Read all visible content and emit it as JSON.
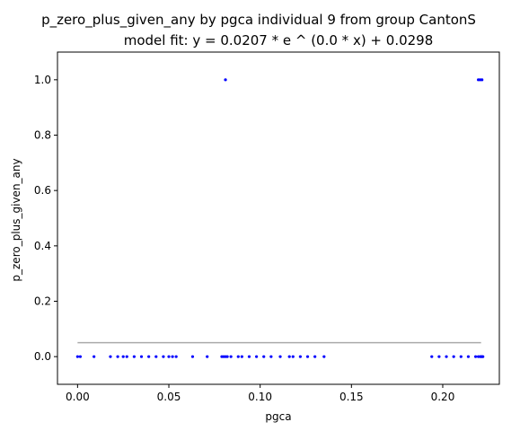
{
  "chart_data": {
    "type": "scatter",
    "title": "p_zero_plus_given_any by pgca individual 9 from group CantonS",
    "subtitle": "model fit: y = 0.0207 * e ^ (0.0 * x) + 0.0298",
    "xlabel": "pgca",
    "ylabel": "p_zero_plus_given_any",
    "xlim": [
      -0.011,
      0.231
    ],
    "ylim": [
      -0.1,
      1.1
    ],
    "x_ticks": [
      0.0,
      0.05,
      0.1,
      0.15,
      0.2
    ],
    "x_tick_labels": [
      "0.00",
      "0.05",
      "0.10",
      "0.15",
      "0.20"
    ],
    "y_ticks": [
      0.0,
      0.2,
      0.4,
      0.6,
      0.8,
      1.0
    ],
    "y_tick_labels": [
      "0.0",
      "0.2",
      "0.4",
      "0.6",
      "0.8",
      "1.0"
    ],
    "grid": false,
    "legend": "none",
    "point_color": "#0000ff",
    "fit_color": "#aaaaaa",
    "series": [
      {
        "x": [
          0.0,
          0.0015,
          0.009,
          0.018,
          0.022,
          0.025,
          0.027,
          0.031,
          0.035,
          0.039,
          0.043,
          0.047,
          0.05,
          0.052,
          0.054,
          0.063,
          0.071,
          0.079,
          0.08,
          0.081,
          0.082,
          0.084,
          0.088,
          0.09,
          0.094,
          0.098,
          0.102,
          0.106,
          0.111,
          0.116,
          0.118,
          0.122,
          0.126,
          0.13,
          0.135,
          0.194,
          0.198,
          0.202,
          0.206,
          0.21,
          0.214,
          0.218,
          0.2195,
          0.2205,
          0.221,
          0.2215,
          0.222,
          0.081,
          0.2195,
          0.2205,
          0.2215
        ],
        "y": [
          0.0,
          0.0,
          0.0,
          0.0,
          0.0,
          0.0,
          0.0,
          0.0,
          0.0,
          0.0,
          0.0,
          0.0,
          0.0,
          0.0,
          0.0,
          0.0,
          0.0,
          0.0,
          0.0,
          0.0,
          0.0,
          0.0,
          0.0,
          0.0,
          0.0,
          0.0,
          0.0,
          0.0,
          0.0,
          0.0,
          0.0,
          0.0,
          0.0,
          0.0,
          0.0,
          0.0,
          0.0,
          0.0,
          0.0,
          0.0,
          0.0,
          0.0,
          0.0,
          0.0,
          0.0,
          0.0,
          0.0,
          1.0,
          1.0,
          1.0,
          1.0
        ]
      }
    ],
    "fit_line": {
      "x": [
        0.0,
        0.221
      ],
      "y": [
        0.0505,
        0.0505
      ]
    }
  }
}
